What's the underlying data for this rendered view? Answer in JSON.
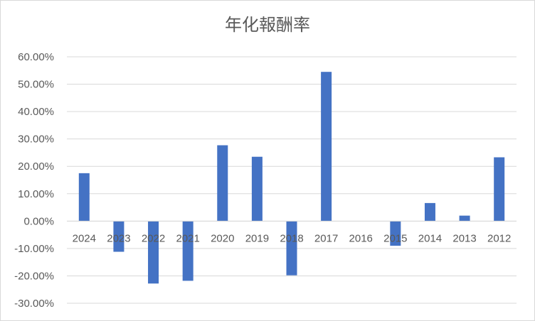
{
  "chart_data": {
    "type": "bar",
    "title": "年化報酬率",
    "xlabel": "",
    "ylabel": "",
    "categories": [
      "2024",
      "2023",
      "2022",
      "2021",
      "2020",
      "2019",
      "2018",
      "2017",
      "2016",
      "2015",
      "2014",
      "2013",
      "2012"
    ],
    "series": [
      {
        "values": [
          17.5,
          -11.2,
          -22.8,
          -21.8,
          27.7,
          23.5,
          -19.8,
          54.5,
          0,
          -9.0,
          6.6,
          2.0,
          23.3
        ]
      }
    ],
    "ylim": [
      -30,
      60
    ],
    "yticks": [
      60,
      50,
      40,
      30,
      20,
      10,
      0,
      -10,
      -20,
      -30
    ],
    "ytick_labels": [
      "60.00%",
      "50.00%",
      "40.00%",
      "30.00%",
      "20.00%",
      "10.00%",
      "0.00%",
      "-10.00%",
      "-20.00%",
      "-30.00%"
    ],
    "grid": true,
    "legend": "none",
    "bar_color": "#4472C4",
    "grid_color": "#d9d9d9",
    "text_color": "#595959"
  }
}
